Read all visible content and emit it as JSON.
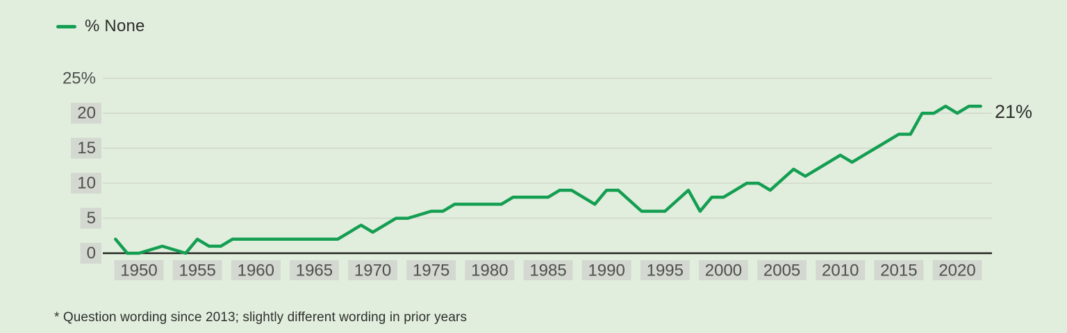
{
  "legend": {
    "label": "% None"
  },
  "annotation": {
    "end_label": "21%"
  },
  "footnote": "* Question wording since 2013; slightly different wording in prior years",
  "chart_data": {
    "type": "line",
    "title": "",
    "xlabel": "",
    "ylabel": "",
    "ylim": [
      0,
      25
    ],
    "xlim": [
      1947,
      2023
    ],
    "grid": "horizontal",
    "legend_position": "top-left",
    "x_ticks": [
      1950,
      1955,
      1960,
      1965,
      1970,
      1975,
      1980,
      1985,
      1990,
      1995,
      2000,
      2005,
      2010,
      2015,
      2020
    ],
    "y_ticks": [
      {
        "value": 25,
        "label": "25%",
        "boxed": false
      },
      {
        "value": 20,
        "label": "20",
        "boxed": true
      },
      {
        "value": 15,
        "label": "15",
        "boxed": true
      },
      {
        "value": 10,
        "label": "10",
        "boxed": true
      },
      {
        "value": 5,
        "label": "5",
        "boxed": true
      },
      {
        "value": 0,
        "label": "0",
        "boxed": true
      }
    ],
    "series": [
      {
        "name": "% None",
        "end_value_label": "21%",
        "points": [
          [
            1948,
            2
          ],
          [
            1949,
            0
          ],
          [
            1950,
            0
          ],
          [
            1952,
            1
          ],
          [
            1954,
            0
          ],
          [
            1955,
            2
          ],
          [
            1956,
            1
          ],
          [
            1957,
            1
          ],
          [
            1958,
            2
          ],
          [
            1967,
            2
          ],
          [
            1969,
            4
          ],
          [
            1970,
            3
          ],
          [
            1972,
            5
          ],
          [
            1973,
            5
          ],
          [
            1975,
            6
          ],
          [
            1976,
            6
          ],
          [
            1977,
            7
          ],
          [
            1981,
            7
          ],
          [
            1982,
            8
          ],
          [
            1985,
            8
          ],
          [
            1986,
            9
          ],
          [
            1987,
            9
          ],
          [
            1989,
            7
          ],
          [
            1990,
            9
          ],
          [
            1991,
            9
          ],
          [
            1993,
            6
          ],
          [
            1995,
            6
          ],
          [
            1997,
            9
          ],
          [
            1998,
            6
          ],
          [
            1999,
            8
          ],
          [
            2000,
            8
          ],
          [
            2002,
            10
          ],
          [
            2003,
            10
          ],
          [
            2004,
            9
          ],
          [
            2006,
            12
          ],
          [
            2007,
            11
          ],
          [
            2008,
            12
          ],
          [
            2009,
            13
          ],
          [
            2010,
            14
          ],
          [
            2011,
            13
          ],
          [
            2012,
            14
          ],
          [
            2013,
            15
          ],
          [
            2014,
            16
          ],
          [
            2015,
            17
          ],
          [
            2016,
            17
          ],
          [
            2017,
            20
          ],
          [
            2018,
            20
          ],
          [
            2019,
            21
          ],
          [
            2020,
            20
          ],
          [
            2021,
            21
          ],
          [
            2022,
            21
          ]
        ]
      }
    ],
    "colors": {
      "background": "#e2eedd",
      "line": "#149e52",
      "gridline": "#cfd7cb",
      "axis": "#20221f",
      "tick_text": "#4d4f4c",
      "tick_box": "#d3d8d0",
      "text": "#2c2d2b"
    }
  }
}
